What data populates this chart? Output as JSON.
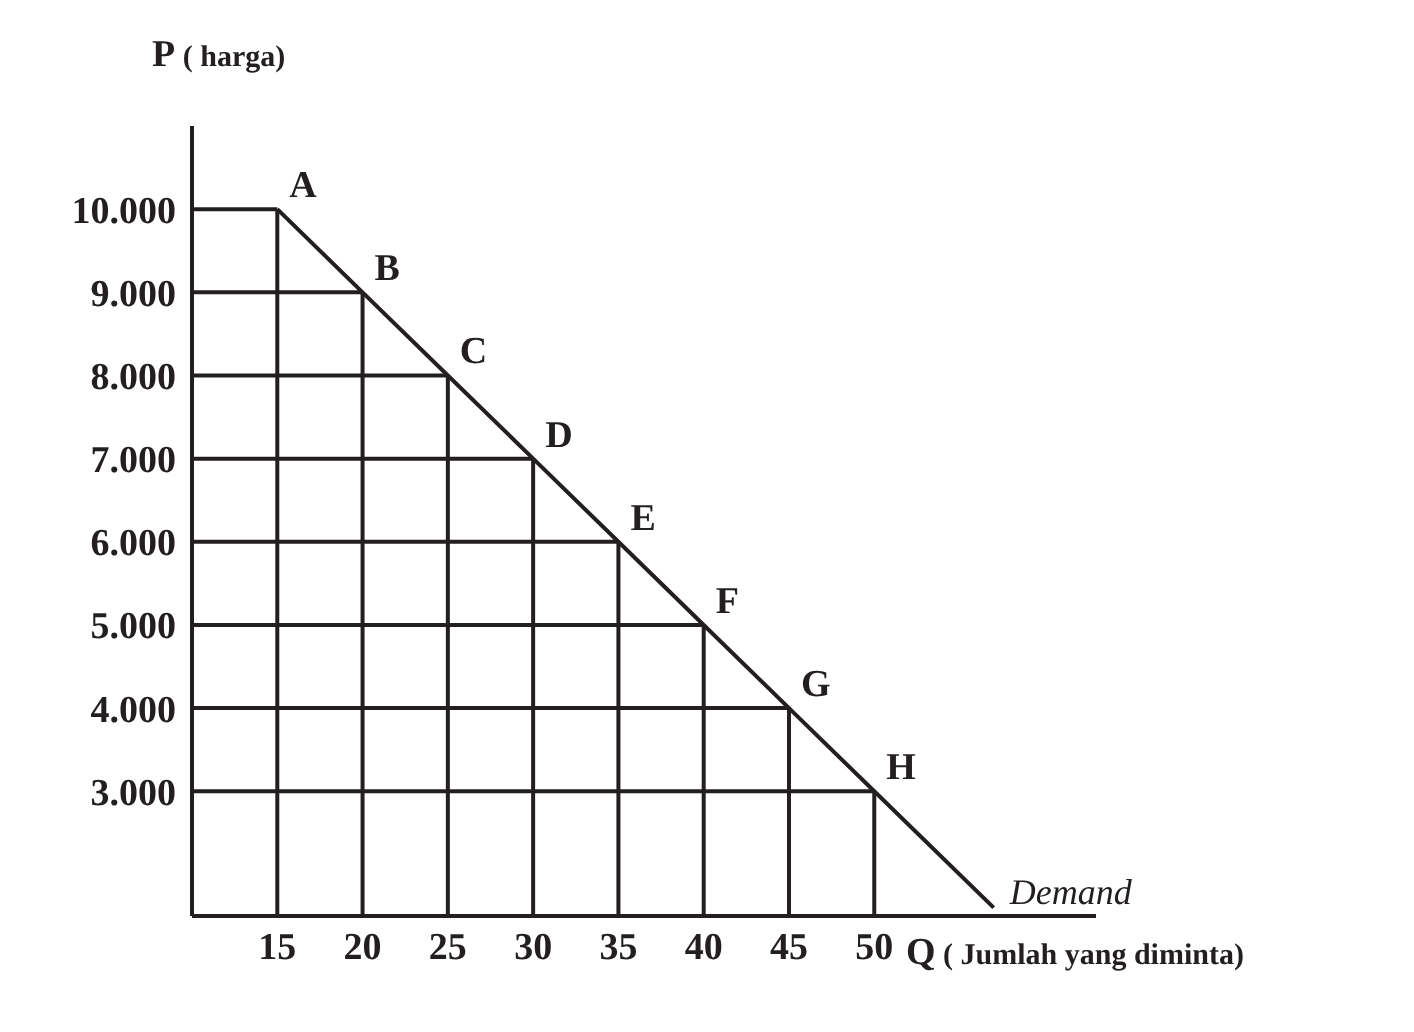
{
  "chart_data": {
    "type": "line",
    "xlabel": "Q ( Jumlah yang diminta)",
    "ylabel": "P ( harga)",
    "x": [
      15,
      20,
      25,
      30,
      35,
      40,
      45,
      50,
      57
    ],
    "series": [
      {
        "name": "Demand",
        "color": "#231f20",
        "values": [
          10000,
          9000,
          8000,
          7000,
          6000,
          5000,
          4000,
          3000,
          1600
        ]
      }
    ],
    "xlim": [
      10,
      63
    ],
    "xticks": [
      15,
      20,
      25,
      30,
      35,
      40,
      45,
      50
    ],
    "ylim": [
      1500,
      11000
    ],
    "yticks": [
      {
        "value": 3000,
        "label": "3.000"
      },
      {
        "value": 4000,
        "label": "4.000"
      },
      {
        "value": 5000,
        "label": "5.000"
      },
      {
        "value": 6000,
        "label": "6.000"
      },
      {
        "value": 7000,
        "label": "7.000"
      },
      {
        "value": 8000,
        "label": "8.000"
      },
      {
        "value": 9000,
        "label": "9.000"
      },
      {
        "value": 10000,
        "label": "10.000"
      }
    ],
    "annotations": [
      {
        "text": "A",
        "x": 15,
        "y": 10000
      },
      {
        "text": "B",
        "x": 20,
        "y": 9000
      },
      {
        "text": "C",
        "x": 25,
        "y": 8000
      },
      {
        "text": "D",
        "x": 30,
        "y": 7000
      },
      {
        "text": "E",
        "x": 35,
        "y": 6000
      },
      {
        "text": "F",
        "x": 40,
        "y": 5000
      },
      {
        "text": "G",
        "x": 45,
        "y": 4000
      },
      {
        "text": "H",
        "x": 50,
        "y": 3000
      }
    ],
    "grid": true,
    "marker": "none",
    "line_style": "solid"
  }
}
